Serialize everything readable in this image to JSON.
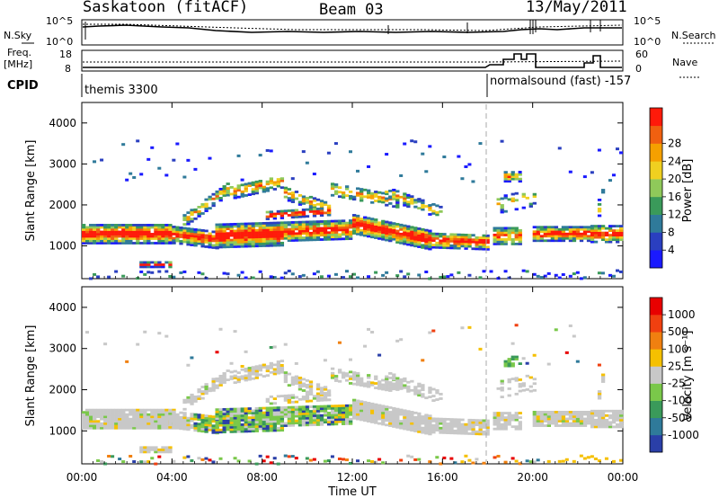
{
  "header": {
    "station": "Saskatoon (fitACF)",
    "beam": "Beam 03",
    "date": "13/May/2011"
  },
  "noise_panel": {
    "left_label": "N.Sky",
    "right_label": "N.Search",
    "left_ticks": [
      "10^5",
      "10^0"
    ],
    "right_ticks": [
      "10^5",
      "10^0"
    ]
  },
  "freq_panel": {
    "left_label_1": "Freq.",
    "left_label_2": "[MHz]",
    "right_label": "Nave",
    "left_ticks": [
      "18",
      "8"
    ],
    "right_ticks": [
      "60",
      "0"
    ]
  },
  "cpid": {
    "label": "CPID",
    "segments": [
      {
        "name": "themis 3300",
        "start_hour": 0
      },
      {
        "name": "normalsound (fast) -157",
        "start_hour": 18
      }
    ]
  },
  "chart_data": [
    {
      "type": "heatmap",
      "quantity": "power",
      "ylabel": "Slant Range [km]",
      "xlabel": "Time UT",
      "x_ticks": [
        "00:00",
        "04:00",
        "08:00",
        "12:00",
        "16:00",
        "20:00",
        "00:00"
      ],
      "xlim_hours": [
        0,
        24
      ],
      "y_ticks": [
        1000,
        2000,
        3000,
        4000
      ],
      "ylim": [
        200,
        4500
      ],
      "colorbar": {
        "label": "Power [dB]",
        "ticks": [
          "4",
          "8",
          "12",
          "16",
          "20",
          "24",
          "28"
        ],
        "colors": [
          "#1a1aff",
          "#2a3fc0",
          "#2f7a9a",
          "#3a9a5a",
          "#8fc95a",
          "#f0d020",
          "#f5a000",
          "#f06010",
          "#ff1a0a"
        ]
      }
    },
    {
      "type": "heatmap",
      "quantity": "velocity",
      "ylabel": "Slant Range [km]",
      "xlabel": "Time UT",
      "x_ticks": [
        "00:00",
        "04:00",
        "08:00",
        "12:00",
        "16:00",
        "20:00",
        "00:00"
      ],
      "xlim_hours": [
        0,
        24
      ],
      "y_ticks": [
        1000,
        2000,
        3000,
        4000
      ],
      "ylim": [
        200,
        4500
      ],
      "colorbar": {
        "label": "Velocity [m s⁻¹]",
        "ticks": [
          "1000",
          "500",
          "100",
          "25",
          "-25",
          "-100",
          "-500",
          "-1000"
        ],
        "colors": [
          "#2a3fa8",
          "#2f7a9a",
          "#3a9a5a",
          "#7ac84a",
          "#c8c8c8",
          "#f5c000",
          "#f08010",
          "#f04010",
          "#e80000"
        ]
      }
    }
  ]
}
